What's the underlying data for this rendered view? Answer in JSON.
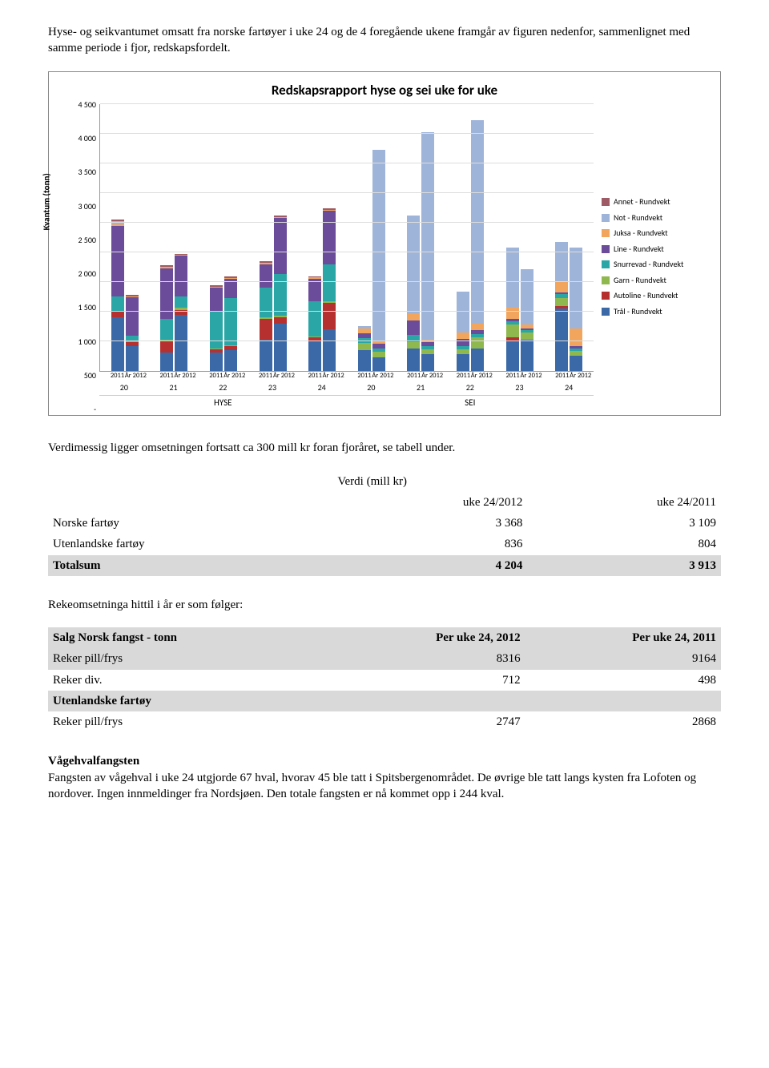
{
  "intro_text": "Hyse- og seikvantumet omsatt fra norske fartøyer i uke 24 og de 4 foregående ukene framgår av figuren nedenfor, sammenlignet med samme periode i fjor, redskapsfordelt.",
  "chart": {
    "title": "Redskapsrapport hyse og sei uke for uke",
    "y_label": "Kvantum (tonn)",
    "ymax": 4500,
    "ytick_step": 500,
    "yticks": [
      "-",
      "500",
      "1 000",
      "1 500",
      "2 000",
      "2 500",
      "3 000",
      "3 500",
      "4 000",
      "4 500"
    ],
    "sublabels": [
      "2011",
      "År 2012"
    ],
    "weeks": [
      "20",
      "21",
      "22",
      "23",
      "24",
      "20",
      "21",
      "22",
      "23",
      "24"
    ],
    "category_labels": [
      "HYSE",
      "SEI"
    ],
    "category_span": [
      5,
      5
    ],
    "series": [
      {
        "name": "Annet - Rundvekt",
        "color": "#9e5b65"
      },
      {
        "name": "Not - Rundvekt",
        "color": "#9fb4d9"
      },
      {
        "name": "Juksa - Rundvekt",
        "color": "#f2a55c"
      },
      {
        "name": "Line - Rundvekt",
        "color": "#6b4c9a"
      },
      {
        "name": "Snurrevad - Rundvekt",
        "color": "#2aa6a6"
      },
      {
        "name": "Garn - Rundvekt",
        "color": "#8fb84f"
      },
      {
        "name": "Autoline - Rundvekt",
        "color": "#b63030"
      },
      {
        "name": "Trål - Rundvekt",
        "color": "#3b69a8"
      }
    ],
    "groups": [
      {
        "week": "20",
        "cat": "HYSE",
        "bars": [
          {
            "label": "2011",
            "stack": {
              "Trål - Rundvekt": 900,
              "Autoline - Rundvekt": 100,
              "Snurrevad - Rundvekt": 250,
              "Line - Rundvekt": 1200,
              "Juksa - Rundvekt": 30,
              "Not - Rundvekt": 50,
              "Annet - Rundvekt": 20
            }
          },
          {
            "label": "År 2012",
            "stack": {
              "Trål - Rundvekt": 420,
              "Autoline - Rundvekt": 60,
              "Garn - Rundvekt": 30,
              "Snurrevad - Rundvekt": 80,
              "Line - Rundvekt": 650,
              "Juksa - Rundvekt": 20,
              "Annet - Rundvekt": 20
            }
          }
        ]
      },
      {
        "week": "21",
        "cat": "HYSE",
        "bars": [
          {
            "label": "2011",
            "stack": {
              "Trål - Rundvekt": 300,
              "Autoline - Rundvekt": 200,
              "Garn - Rundvekt": 30,
              "Snurrevad - Rundvekt": 350,
              "Line - Rundvekt": 850,
              "Juksa - Rundvekt": 30,
              "Annet - Rundvekt": 20
            }
          },
          {
            "label": "År 2012",
            "stack": {
              "Trål - Rundvekt": 950,
              "Autoline - Rundvekt": 80,
              "Garn - Rundvekt": 30,
              "Snurrevad - Rundvekt": 200,
              "Line - Rundvekt": 680,
              "Juksa - Rundvekt": 20,
              "Annet - Rundvekt": 20
            }
          }
        ]
      },
      {
        "week": "22",
        "cat": "HYSE",
        "bars": [
          {
            "label": "2011",
            "stack": {
              "Trål - Rundvekt": 300,
              "Autoline - Rundvekt": 60,
              "Garn - Rundvekt": 20,
              "Snurrevad - Rundvekt": 620,
              "Line - Rundvekt": 400,
              "Juksa - Rundvekt": 20,
              "Annet - Rundvekt": 30
            }
          },
          {
            "label": "År 2012",
            "stack": {
              "Trål - Rundvekt": 350,
              "Autoline - Rundvekt": 60,
              "Garn - Rundvekt": 20,
              "Snurrevad - Rundvekt": 800,
              "Line - Rundvekt": 320,
              "Juksa - Rundvekt": 20,
              "Annet - Rundvekt": 20
            }
          }
        ]
      },
      {
        "week": "23",
        "cat": "HYSE",
        "bars": [
          {
            "label": "2011",
            "stack": {
              "Trål - Rundvekt": 520,
              "Autoline - Rundvekt": 350,
              "Garn - Rundvekt": 30,
              "Snurrevad - Rundvekt": 500,
              "Line - Rundvekt": 400,
              "Juksa - Rundvekt": 20,
              "Annet - Rundvekt": 30
            }
          },
          {
            "label": "År 2012",
            "stack": {
              "Trål - Rundvekt": 800,
              "Autoline - Rundvekt": 100,
              "Garn - Rundvekt": 30,
              "Snurrevad - Rundvekt": 700,
              "Line - Rundvekt": 950,
              "Juksa - Rundvekt": 20,
              "Annet - Rundvekt": 20
            }
          }
        ]
      },
      {
        "week": "24",
        "cat": "HYSE",
        "bars": [
          {
            "label": "2011",
            "stack": {
              "Trål - Rundvekt": 500,
              "Autoline - Rundvekt": 60,
              "Garn - Rundvekt": 20,
              "Snurrevad - Rundvekt": 600,
              "Line - Rundvekt": 380,
              "Juksa - Rundvekt": 20,
              "Annet - Rundvekt": 20
            }
          },
          {
            "label": "År 2012",
            "stack": {
              "Trål - Rundvekt": 700,
              "Autoline - Rundvekt": 450,
              "Garn - Rundvekt": 30,
              "Snurrevad - Rundvekt": 620,
              "Line - Rundvekt": 900,
              "Juksa - Rundvekt": 20,
              "Annet - Rundvekt": 30
            }
          }
        ]
      },
      {
        "week": "20",
        "cat": "SEI",
        "bars": [
          {
            "label": "2011",
            "stack": {
              "Trål - Rundvekt": 350,
              "Garn - Rundvekt": 120,
              "Snurrevad - Rundvekt": 80,
              "Line - Rundvekt": 80,
              "Juksa - Rundvekt": 80,
              "Not - Rundvekt": 40
            }
          },
          {
            "label": "År 2012",
            "stack": {
              "Trål - Rundvekt": 220,
              "Garn - Rundvekt": 100,
              "Snurrevad - Rundvekt": 60,
              "Line - Rundvekt": 70,
              "Juksa - Rundvekt": 60,
              "Not - Rundvekt": 3230
            }
          }
        ]
      },
      {
        "week": "21",
        "cat": "SEI",
        "bars": [
          {
            "label": "2011",
            "stack": {
              "Trål - Rundvekt": 380,
              "Garn - Rundvekt": 100,
              "Snurrevad - Rundvekt": 120,
              "Line - Rundvekt": 250,
              "Juksa - Rundvekt": 120,
              "Not - Rundvekt": 1660
            }
          },
          {
            "label": "År 2012",
            "stack": {
              "Trål - Rundvekt": 280,
              "Garn - Rundvekt": 80,
              "Snurrevad - Rundvekt": 60,
              "Line - Rundvekt": 60,
              "Juksa - Rundvekt": 60,
              "Not - Rundvekt": 3490
            }
          }
        ]
      },
      {
        "week": "22",
        "cat": "SEI",
        "bars": [
          {
            "label": "2011",
            "stack": {
              "Trål - Rundvekt": 280,
              "Garn - Rundvekt": 80,
              "Snurrevad - Rundvekt": 60,
              "Line - Rundvekt": 120,
              "Juksa - Rundvekt": 100,
              "Not - Rundvekt": 700
            }
          },
          {
            "label": "År 2012",
            "stack": {
              "Trål - Rundvekt": 380,
              "Garn - Rundvekt": 180,
              "Snurrevad - Rundvekt": 60,
              "Line - Rundvekt": 60,
              "Juksa - Rundvekt": 120,
              "Not - Rundvekt": 3430
            }
          }
        ]
      },
      {
        "week": "23",
        "cat": "SEI",
        "bars": [
          {
            "label": "2011",
            "stack": {
              "Trål - Rundvekt": 500,
              "Autoline - Rundvekt": 60,
              "Garn - Rundvekt": 220,
              "Snurrevad - Rundvekt": 60,
              "Line - Rundvekt": 30,
              "Juksa - Rundvekt": 200,
              "Not - Rundvekt": 1010
            }
          },
          {
            "label": "År 2012",
            "stack": {
              "Trål - Rundvekt": 520,
              "Garn - Rundvekt": 120,
              "Snurrevad - Rundvekt": 40,
              "Line - Rundvekt": 40,
              "Juksa - Rundvekt": 60,
              "Not - Rundvekt": 940
            }
          }
        ]
      },
      {
        "week": "24",
        "cat": "SEI",
        "bars": [
          {
            "label": "2011",
            "stack": {
              "Trål - Rundvekt": 1050,
              "Autoline - Rundvekt": 40,
              "Garn - Rundvekt": 140,
              "Snurrevad - Rundvekt": 60,
              "Line - Rundvekt": 40,
              "Juksa - Rundvekt": 180,
              "Not - Rundvekt": 670
            }
          },
          {
            "label": "År 2012",
            "stack": {
              "Trål - Rundvekt": 250,
              "Garn - Rundvekt": 80,
              "Snurrevad - Rundvekt": 40,
              "Line - Rundvekt": 40,
              "Juksa - Rundvekt": 300,
              "Not - Rundvekt": 1370
            }
          }
        ]
      }
    ]
  },
  "mid_text": "Verdimessig ligger omsetningen fortsatt ca 300 mill kr foran fjoråret, se tabell under.",
  "value_table": {
    "sup_header": "Verdi (mill kr)",
    "cols": [
      "",
      "uke 24/2012",
      "uke 24/2011"
    ],
    "rows": [
      {
        "label": "Norske fartøy",
        "a": "3 368",
        "b": "3 109"
      },
      {
        "label": "Utenlandske fartøy",
        "a": "836",
        "b": "804"
      }
    ],
    "total": {
      "label": "Totalsum",
      "a": "4 204",
      "b": "3 913"
    }
  },
  "reke_intro": "Rekeomsetninga hittil i år er som følger:",
  "reke_table": {
    "header": {
      "label": "Salg Norsk fangst - tonn",
      "a": "Per uke 24, 2012",
      "b": "Per uke 24, 2011"
    },
    "rows": [
      {
        "label": "Reker pill/frys",
        "a": "8316",
        "b": "9164",
        "shade": true
      },
      {
        "label": "Reker div.",
        "a": "712",
        "b": "498",
        "shade": false
      },
      {
        "label": "Utenlandske fartøy",
        "a": "",
        "b": "",
        "shade": true,
        "bold": true
      },
      {
        "label": "Reker pill/frys",
        "a": "2747",
        "b": "2868",
        "shade": false
      }
    ]
  },
  "whale": {
    "title": "Vågehvalfangsten",
    "text": "Fangsten av vågehval i uke 24 utgjorde 67 hval, hvorav 45 ble tatt i Spitsbergenområdet. De øvrige ble tatt langs kysten fra Lofoten og nordover. Ingen innmeldinger fra Nordsjøen. Den totale fangsten er nå kommet opp i 244 kval."
  }
}
